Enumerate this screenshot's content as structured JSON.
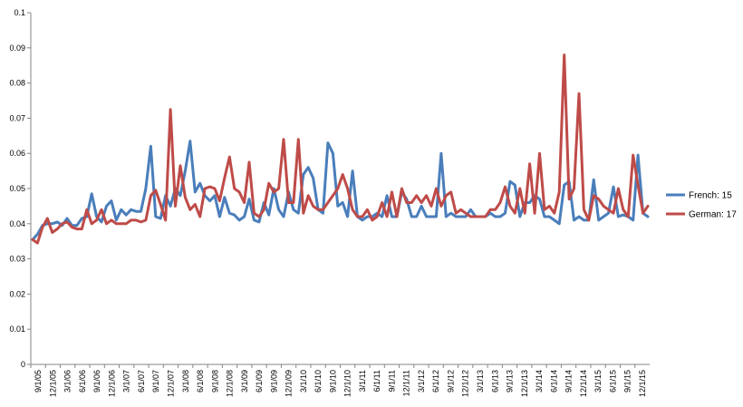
{
  "chart_data": {
    "type": "line",
    "title": "",
    "xlabel": "",
    "ylabel": "",
    "ylim": [
      0,
      0.1
    ],
    "yticks": [
      "0",
      "0.01",
      "0.02",
      "0.03",
      "0.04",
      "0.05",
      "0.06",
      "0.07",
      "0.08",
      "0.09",
      "0.1"
    ],
    "grid": false,
    "legend_position": "right",
    "x_tick_labels": [
      "9/1/05",
      "12/1/05",
      "3/1/06",
      "6/1/06",
      "9/1/06",
      "12/1/06",
      "3/1/07",
      "6/1/07",
      "9/1/07",
      "12/1/07",
      "3/1/08",
      "6/1/08",
      "9/1/08",
      "12/1/08",
      "3/1/09",
      "6/1/09",
      "9/1/09",
      "12/1/09",
      "3/1/10",
      "6/1/10",
      "9/1/10",
      "12/1/10",
      "3/1/11",
      "6/1/11",
      "9/1/11",
      "12/1/11",
      "3/1/12",
      "6/1/12",
      "9/1/12",
      "12/1/12",
      "3/1/13",
      "6/1/13",
      "9/1/13",
      "12/1/13",
      "3/1/14",
      "6/1/14",
      "9/1/14",
      "12/1/14",
      "3/1/15",
      "6/1/15",
      "9/1/15",
      "12/1/15"
    ],
    "series": [
      {
        "name": "French: 15",
        "color": "#4a7ebb",
        "values": [
          0.0355,
          0.037,
          0.0395,
          0.04,
          0.04,
          0.0405,
          0.0395,
          0.0415,
          0.0395,
          0.0395,
          0.0415,
          0.042,
          0.0485,
          0.042,
          0.0405,
          0.045,
          0.0465,
          0.041,
          0.044,
          0.0425,
          0.044,
          0.0435,
          0.0435,
          0.05,
          0.062,
          0.042,
          0.0415,
          0.048,
          0.045,
          0.05,
          0.048,
          0.055,
          0.0635,
          0.049,
          0.0515,
          0.048,
          0.0465,
          0.048,
          0.042,
          0.0475,
          0.043,
          0.0425,
          0.041,
          0.042,
          0.047,
          0.041,
          0.0405,
          0.046,
          0.0425,
          0.05,
          0.044,
          0.042,
          0.049,
          0.044,
          0.043,
          0.054,
          0.056,
          0.053,
          0.044,
          0.043,
          0.063,
          0.06,
          0.045,
          0.046,
          0.042,
          0.055,
          0.042,
          0.041,
          0.042,
          0.042,
          0.043,
          0.042,
          0.048,
          0.042,
          0.042,
          0.049,
          0.047,
          0.042,
          0.042,
          0.045,
          0.042,
          0.042,
          0.042,
          0.06,
          0.042,
          0.043,
          0.042,
          0.042,
          0.042,
          0.044,
          0.042,
          0.042,
          0.042,
          0.043,
          0.042,
          0.042,
          0.043,
          0.052,
          0.051,
          0.042,
          0.046,
          0.046,
          0.048,
          0.047,
          0.042,
          0.042,
          0.041,
          0.04,
          0.051,
          0.052,
          0.041,
          0.042,
          0.041,
          0.041,
          0.0525,
          0.041,
          0.042,
          0.043,
          0.0505,
          0.042,
          0.0425,
          0.042,
          0.041,
          0.0595,
          0.043,
          0.042
        ]
      },
      {
        "name": "German: 17",
        "color": "#be4b48",
        "values": [
          0.0355,
          0.0345,
          0.039,
          0.0415,
          0.0375,
          0.0385,
          0.04,
          0.0405,
          0.039,
          0.0385,
          0.0385,
          0.044,
          0.04,
          0.041,
          0.044,
          0.04,
          0.041,
          0.04,
          0.04,
          0.04,
          0.041,
          0.041,
          0.0405,
          0.041,
          0.048,
          0.0495,
          0.0455,
          0.041,
          0.0725,
          0.045,
          0.0565,
          0.0475,
          0.044,
          0.0455,
          0.042,
          0.05,
          0.0505,
          0.05,
          0.0465,
          0.053,
          0.059,
          0.05,
          0.049,
          0.046,
          0.0575,
          0.043,
          0.042,
          0.044,
          0.0515,
          0.049,
          0.05,
          0.064,
          0.046,
          0.046,
          0.064,
          0.043,
          0.048,
          0.045,
          0.044,
          0.044,
          0.046,
          0.048,
          0.05,
          0.054,
          0.05,
          0.044,
          0.042,
          0.042,
          0.044,
          0.041,
          0.042,
          0.046,
          0.042,
          0.049,
          0.042,
          0.05,
          0.046,
          0.046,
          0.048,
          0.046,
          0.048,
          0.045,
          0.05,
          0.045,
          0.048,
          0.049,
          0.043,
          0.044,
          0.043,
          0.042,
          0.042,
          0.042,
          0.042,
          0.044,
          0.044,
          0.046,
          0.0505,
          0.045,
          0.043,
          0.05,
          0.043,
          0.057,
          0.043,
          0.06,
          0.044,
          0.045,
          0.043,
          0.049,
          0.088,
          0.047,
          0.05,
          0.077,
          0.044,
          0.041,
          0.048,
          0.047,
          0.045,
          0.044,
          0.043,
          0.05,
          0.044,
          0.042,
          0.0595,
          0.051,
          0.043,
          0.045
        ]
      }
    ]
  }
}
